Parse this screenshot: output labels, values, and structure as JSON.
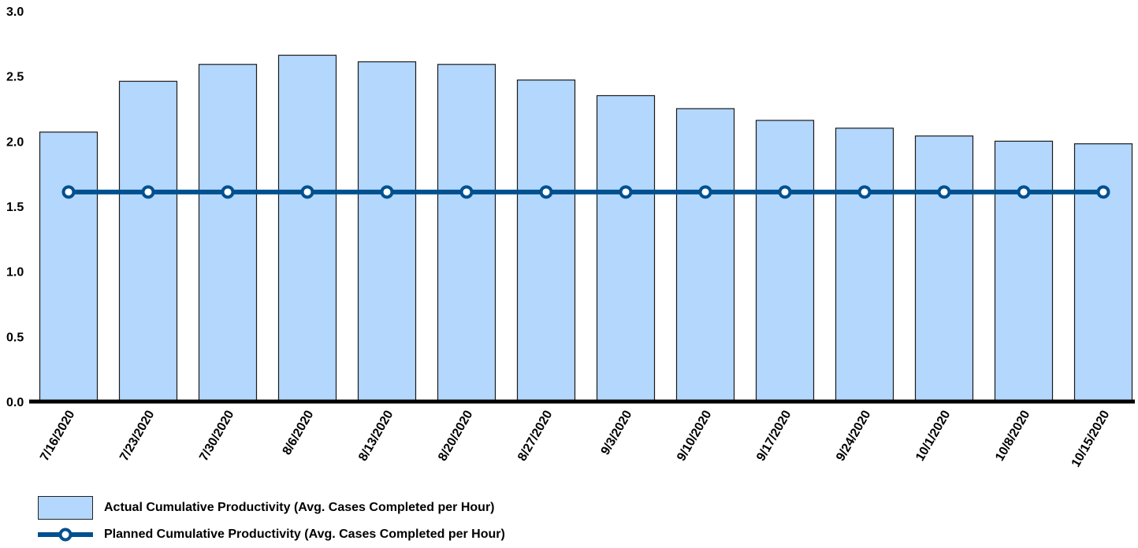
{
  "chart_data": {
    "type": "bar",
    "title": "",
    "xlabel": "",
    "ylabel": "",
    "ylim": [
      0,
      3.0
    ],
    "yticks": [
      "0.0",
      "0.5",
      "1.0",
      "1.5",
      "2.0",
      "2.5",
      "3.0"
    ],
    "grid": false,
    "legend_position": "bottom-left",
    "categories": [
      "7/16/2020",
      "7/23/2020",
      "7/30/2020",
      "8/6/2020",
      "8/13/2020",
      "8/20/2020",
      "8/27/2020",
      "9/3/2020",
      "9/10/2020",
      "9/17/2020",
      "9/24/2020",
      "10/1/2020",
      "10/8/2020",
      "10/15/2020"
    ],
    "series": [
      {
        "name": "Actual Cumulative Productivity (Avg. Cases Completed per Hour)",
        "type": "bar",
        "color": "#b3d7fd",
        "values": [
          2.07,
          2.46,
          2.59,
          2.66,
          2.61,
          2.59,
          2.47,
          2.35,
          2.25,
          2.16,
          2.1,
          2.04,
          2.0,
          1.98
        ]
      },
      {
        "name": "Planned Cumulative Productivity (Avg. Cases Completed per Hour)",
        "type": "line",
        "color": "#00508f",
        "values": [
          1.61,
          1.61,
          1.61,
          1.61,
          1.61,
          1.61,
          1.61,
          1.61,
          1.61,
          1.61,
          1.61,
          1.61,
          1.61,
          1.61
        ]
      }
    ]
  }
}
